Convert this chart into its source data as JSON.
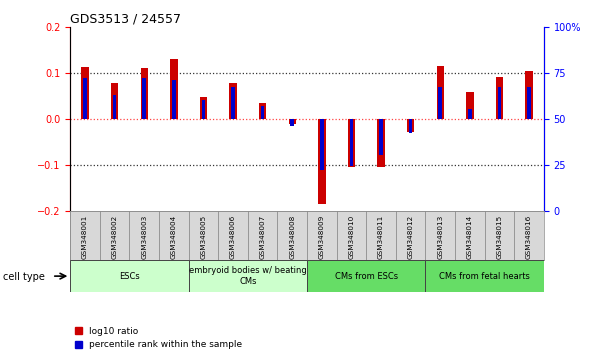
{
  "title": "GDS3513 / 24557",
  "categories": [
    "GSM348001",
    "GSM348002",
    "GSM348003",
    "GSM348004",
    "GSM348005",
    "GSM348006",
    "GSM348007",
    "GSM348008",
    "GSM348009",
    "GSM348010",
    "GSM348011",
    "GSM348012",
    "GSM348013",
    "GSM348014",
    "GSM348015",
    "GSM348016"
  ],
  "log10_ratio": [
    0.113,
    0.077,
    0.11,
    0.13,
    0.048,
    0.077,
    0.033,
    -0.012,
    -0.185,
    -0.105,
    -0.105,
    -0.03,
    0.115,
    0.057,
    0.09,
    0.103
  ],
  "percentile_rank": [
    72,
    63,
    72,
    71,
    60,
    67,
    57,
    46,
    22,
    24,
    30,
    42,
    67,
    55,
    67,
    67
  ],
  "cell_type_groups": [
    {
      "label": "ESCs",
      "start": 0,
      "end": 3,
      "color": "#CCFFCC"
    },
    {
      "label": "embryoid bodies w/ beating\nCMs",
      "start": 4,
      "end": 7,
      "color": "#CCFFCC"
    },
    {
      "label": "CMs from ESCs",
      "start": 8,
      "end": 11,
      "color": "#66DD66"
    },
    {
      "label": "CMs from fetal hearts",
      "start": 12,
      "end": 15,
      "color": "#66DD66"
    }
  ],
  "ylim_left": [
    -0.2,
    0.2
  ],
  "ylim_right": [
    0,
    100
  ],
  "yticks_left": [
    -0.2,
    -0.1,
    0.0,
    0.1,
    0.2
  ],
  "yticks_right": [
    0,
    25,
    50,
    75,
    100
  ],
  "bar_color_red": "#CC0000",
  "bar_color_blue": "#0000CC",
  "zero_line_color": "#FF4444",
  "dotted_line_color": "#333333",
  "bar_width": 0.25,
  "blue_bar_width": 0.12,
  "legend_red": "log10 ratio",
  "legend_blue": "percentile rank within the sample"
}
